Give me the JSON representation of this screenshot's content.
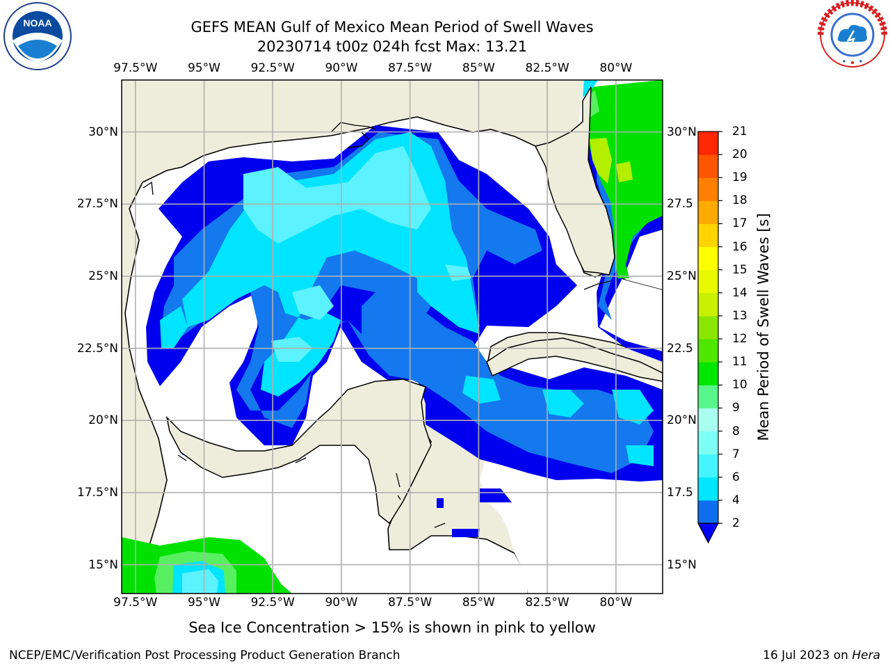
{
  "title": {
    "line1": "GEFS MEAN Gulf of Mexico Mean Period of Swell Waves",
    "line2": "20230714 t00z 024h fcst   Max: 13.21"
  },
  "logos": {
    "left": {
      "name": "noaa-logo",
      "text": "NOAA",
      "ring_text": "NATIONAL OCEANIC AND ATMOSPHERIC ADMINISTRATION · U.S. DEPARTMENT OF COMMERCE"
    },
    "right": {
      "name": "nws-logo",
      "ring_text": "NATIONAL WEATHER SERVICE"
    }
  },
  "map": {
    "lon_labels": [
      "97.5°W",
      "95°W",
      "92.5°W",
      "90°W",
      "87.5°W",
      "85°W",
      "82.5°W",
      "80°W"
    ],
    "lat_labels_left": [
      "30°N",
      "27.5°N",
      "25°N",
      "22.5°N",
      "20°N",
      "17.5°N",
      "15°N"
    ],
    "lat_labels_right": [
      "30°N",
      "27.5",
      "25°N",
      "22.5",
      "20°N",
      "17.5",
      "15°N"
    ],
    "lon_range": [
      -98,
      -78.3
    ],
    "lat_range": [
      14,
      31.8
    ],
    "grid": true,
    "land_color": "#eeeddc",
    "ocean_no_swell_color": "#ffffff"
  },
  "colorbar": {
    "title": "Mean Period of Swell Waves [s]",
    "levels": [
      "2",
      "4",
      "6",
      "7",
      "8",
      "9",
      "10",
      "11",
      "12",
      "13",
      "14",
      "15",
      "16",
      "17",
      "18",
      "19",
      "20",
      "21"
    ],
    "colors": [
      "#0f6ef0",
      "#00e6ff",
      "#44f5ff",
      "#7dfff4",
      "#a8fff0",
      "#58f58a",
      "#00e600",
      "#4fe600",
      "#8ae600",
      "#c8f000",
      "#e8f800",
      "#ffff00",
      "#ffd400",
      "#ffaa00",
      "#ff8000",
      "#ff5500",
      "#ff2800",
      "#ff0000"
    ],
    "under_color": "#0000ff"
  },
  "note": "Sea Ice Concentration > 15% is shown in pink to yellow",
  "footer": {
    "left": "NCEP/EMC/Verification Post Processing Product Generation Branch",
    "right_prefix": "16 Jul 2023 on ",
    "right_italic": "Hera"
  },
  "colors": {
    "c2": "#0000ee",
    "c4": "#1478ee",
    "c6": "#00e4ff",
    "c7": "#5cf2ff",
    "green": "#00e100",
    "lgreen": "#58f060",
    "ygreen": "#b4ee00"
  }
}
